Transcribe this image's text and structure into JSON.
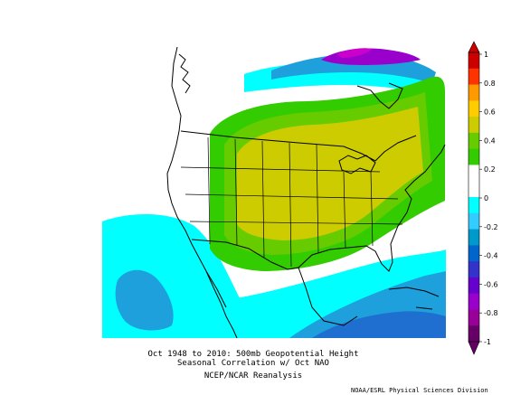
{
  "title_line1": "Oct 1948 to 2010: 500mb Geopotential Height",
  "title_line2": "Seasonal Correlation w/ Oct NAO",
  "source": "NCEP/NCAR Reanalysis",
  "credit": "NOAA/ESRL Physical Sciences Division",
  "colorbar": {
    "labels": [
      "1",
      "0.8",
      "0.6",
      "0.4",
      "0.2",
      "0",
      "-0.2",
      "-0.4",
      "-0.6",
      "-0.8",
      "-1"
    ],
    "colors": [
      "#cc0000",
      "#ff3300",
      "#ff9900",
      "#ffcc00",
      "#cccc00",
      "#66cc00",
      "#33cc00",
      "#ffffff",
      "#ffffff",
      "#00ffff",
      "#33ccff",
      "#0099cc",
      "#0066cc",
      "#3333cc",
      "#6600cc",
      "#9900cc",
      "#990099",
      "#660066"
    ]
  }
}
